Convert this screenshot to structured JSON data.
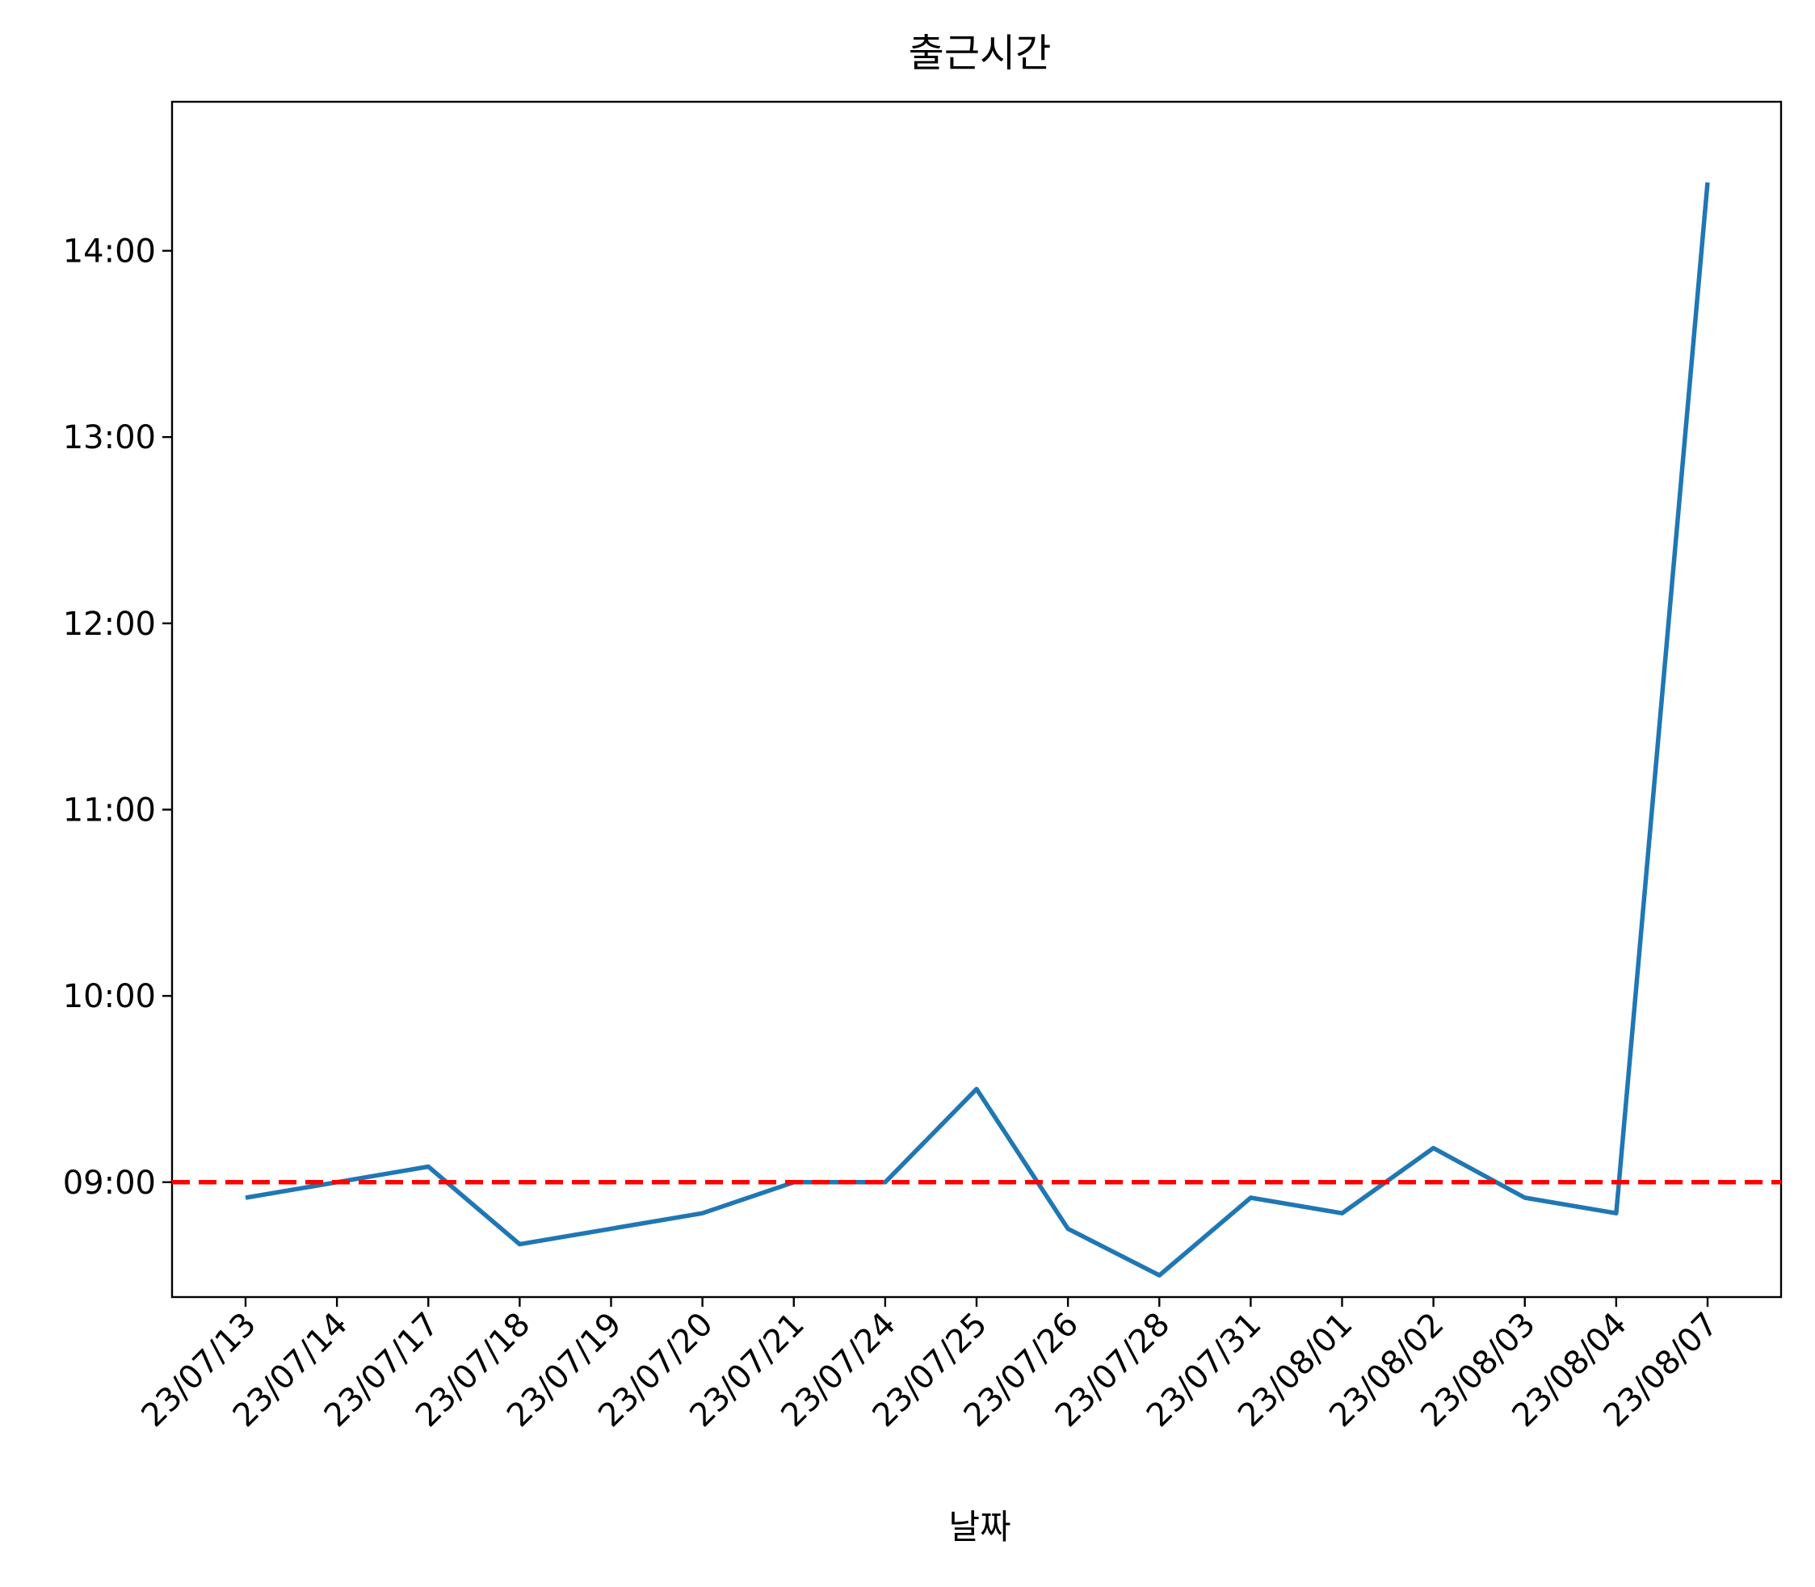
{
  "chart_data": {
    "type": "line",
    "title": "출근시간",
    "xlabel": "날짜",
    "ylabel": "",
    "categories": [
      "23/07/13",
      "23/07/14",
      "23/07/17",
      "23/07/18",
      "23/07/19",
      "23/07/20",
      "23/07/21",
      "23/07/24",
      "23/07/25",
      "23/07/26",
      "23/07/28",
      "23/07/31",
      "23/08/01",
      "23/08/02",
      "23/08/03",
      "23/08/04",
      "23/08/07"
    ],
    "series": [
      {
        "values": [
          "08:55",
          "09:00",
          "09:05",
          "08:40",
          "08:45",
          "08:50",
          "09:00",
          "09:00",
          "09:30",
          "08:45",
          "08:30",
          "08:55",
          "08:50",
          "09:11",
          "08:55",
          "08:50",
          "14:22"
        ]
      }
    ],
    "reference_line": {
      "value": "09:00",
      "style": "dashed"
    },
    "y_ticks": [
      "09:00",
      "10:00",
      "11:00",
      "12:00",
      "13:00",
      "14:00"
    ],
    "ylim": [
      "08:23",
      "14:48"
    ],
    "grid": false,
    "legend": "none",
    "colors": {
      "series": "#1f77b4",
      "reference": "#ff0000",
      "axis": "#000000",
      "background": "#ffffff"
    }
  }
}
